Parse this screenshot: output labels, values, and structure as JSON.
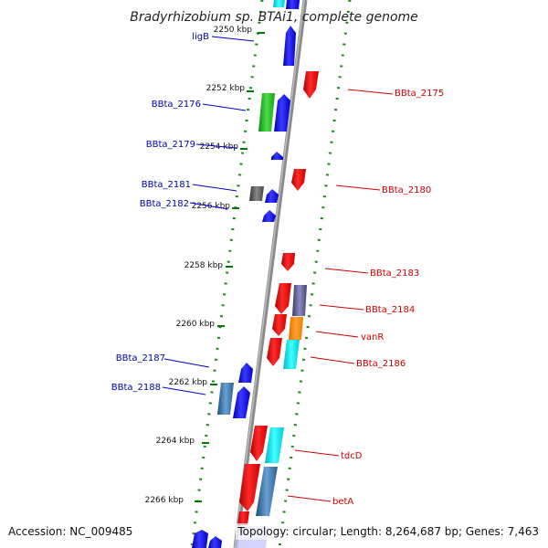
{
  "title": "Bradyrhizobium sp. BTAi1, complete genome",
  "footer": {
    "accession": "Accession: NC_009485",
    "topology": "Topology: circular; Length: 8,264,687 bp; Genes: 7,463"
  },
  "colors": {
    "forward_label": "#cc0000",
    "reverse_label": "#0000aa",
    "backbone": "#8a8a8a",
    "tick_green": "#007a00"
  },
  "kbp_ticks": [
    {
      "label": "2250 kbp"
    },
    {
      "label": "2252 kbp"
    },
    {
      "label": "2254 kbp"
    },
    {
      "label": "2256 kbp"
    },
    {
      "label": "2258 kbp"
    },
    {
      "label": "2260 kbp"
    },
    {
      "label": "2262 kbp"
    },
    {
      "label": "2264 kbp"
    },
    {
      "label": "2266 kbp"
    }
  ],
  "gene_labels": {
    "reverse_strand": [
      "ligB",
      "BBta_2176",
      "BBta_2179",
      "BBta_2181",
      "BBta_2182",
      "BBta_2187",
      "BBta_2188"
    ],
    "forward_strand": [
      "BBta_2175",
      "BBta_2180",
      "BBta_2183",
      "BBta_2184",
      "vanR",
      "BBta_2186",
      "tdcD",
      "betA"
    ]
  }
}
